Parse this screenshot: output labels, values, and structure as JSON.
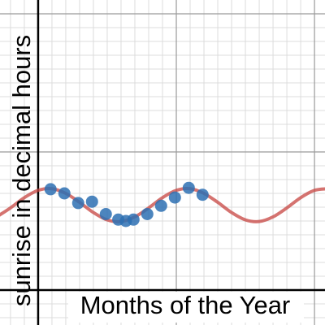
{
  "chart_data": {
    "type": "scatter",
    "x_label": "Months of the Year",
    "y_label": "sunrise in decimal hours",
    "xlim": [
      -2.76,
      20.76
    ],
    "ylim": [
      -2.53,
      21
    ],
    "xticks": [
      -2,
      -1,
      0,
      1,
      2,
      3,
      4,
      5,
      6,
      7,
      8,
      9,
      10,
      11,
      12,
      13,
      14,
      15,
      16,
      17,
      18,
      19,
      20
    ],
    "yticks": [
      -2,
      -1,
      0,
      1,
      2,
      3,
      4,
      5,
      6,
      7,
      8,
      9,
      10,
      11,
      12,
      13,
      14,
      15,
      16,
      17,
      18,
      19,
      20
    ],
    "grid": true,
    "series": [
      {
        "type": "scatter",
        "color": "#2d70b3",
        "x": [
          0.9,
          1.9,
          2.9,
          3.9,
          4.9,
          5.8,
          6.35,
          6.9,
          7.9,
          8.9,
          9.9,
          10.9,
          11.9
        ],
        "values": [
          7.3,
          7.0,
          6.3,
          6.4,
          5.5,
          5.1,
          5.0,
          5.1,
          5.5,
          6.1,
          6.7,
          7.4,
          6.9
        ]
      },
      {
        "type": "line",
        "color": "#c74440",
        "x": [
          -3,
          -2,
          -1,
          0,
          1,
          2,
          3,
          4,
          5,
          6,
          7,
          8,
          9,
          10,
          11,
          12,
          13,
          14,
          15,
          16,
          17,
          18,
          19,
          20,
          21
        ],
        "values": [
          5.3,
          5.95,
          6.69,
          7.22,
          7.34,
          7.0,
          6.35,
          5.61,
          5.08,
          4.96,
          5.3,
          5.95,
          6.69,
          7.22,
          7.34,
          7.0,
          6.35,
          5.61,
          5.08,
          4.96,
          5.3,
          5.95,
          6.69,
          7.22,
          7.34
        ]
      }
    ]
  }
}
